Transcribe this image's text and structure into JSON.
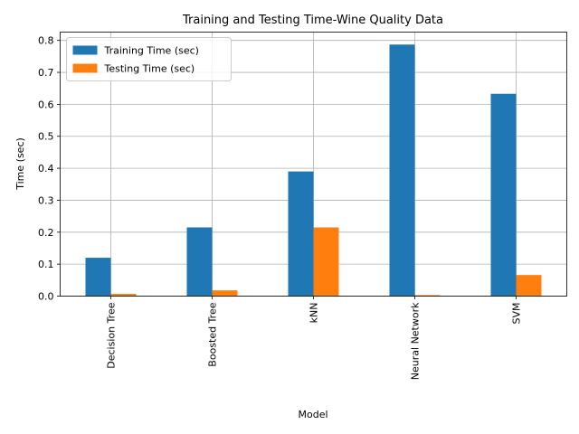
{
  "chart_data": {
    "type": "bar",
    "title": "Training and Testing Time-Wine Quality Data",
    "xlabel": "Model",
    "ylabel": "Time (sec)",
    "categories": [
      "Decision Tree",
      "Boosted Tree",
      "kNN",
      "Neural Network",
      "SVM"
    ],
    "series": [
      {
        "name": "Training Time (sec)",
        "color": "#1f77b4",
        "values": [
          0.12,
          0.215,
          0.39,
          0.787,
          0.633
        ]
      },
      {
        "name": "Testing Time (sec)",
        "color": "#ff7f0e",
        "values": [
          0.007,
          0.018,
          0.215,
          0.003,
          0.066
        ]
      }
    ],
    "ylim": [
      0,
      0.826
    ],
    "yticks": [
      "0.0",
      "0.1",
      "0.2",
      "0.3",
      "0.4",
      "0.5",
      "0.6",
      "0.7",
      "0.8"
    ],
    "grid": true,
    "legend_position": "top-left"
  }
}
